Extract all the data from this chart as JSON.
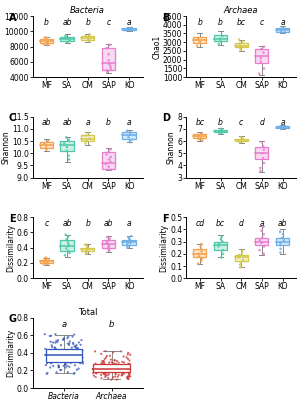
{
  "panels": {
    "A": {
      "title": "Bacteria",
      "ylabel": "Chao1",
      "categories": [
        "MF",
        "SA",
        "CM",
        "SAP",
        "KO"
      ],
      "colors": [
        "#F5A04A",
        "#4EC9A8",
        "#D4C84A",
        "#E87DD0",
        "#6BAEE8"
      ],
      "box_face_alpha": "55",
      "ylim": [
        4000,
        12000
      ],
      "yticks": [
        4000,
        6000,
        8000,
        10000,
        12000
      ],
      "medians": [
        8700,
        8950,
        9100,
        5800,
        10300
      ],
      "q1": [
        8450,
        8750,
        8800,
        5000,
        10150
      ],
      "q3": [
        9050,
        9250,
        9450,
        7800,
        10450
      ],
      "whislo": [
        8150,
        8500,
        8550,
        4600,
        10050
      ],
      "whishi": [
        9300,
        9600,
        9700,
        8400,
        10600
      ],
      "fliers": [
        [
          8200,
          8350,
          8500,
          8600,
          9100,
          9200
        ],
        [
          8600,
          8800,
          9050,
          9200,
          9400
        ],
        [
          8700,
          8950,
          9100,
          9350,
          9600
        ],
        [
          4700,
          4900,
          5100,
          5400,
          5700,
          6200,
          7000,
          7800,
          8200
        ],
        [
          10100,
          10200,
          10300,
          10350,
          10400
        ]
      ],
      "letters": [
        "b",
        "ab",
        "b",
        "c",
        "a"
      ]
    },
    "B": {
      "title": "Archaea",
      "ylabel": "Chao1",
      "categories": [
        "MF",
        "SA",
        "CM",
        "SAP",
        "KO"
      ],
      "colors": [
        "#F5A04A",
        "#4EC9A8",
        "#D4C84A",
        "#E87DD0",
        "#6BAEE8"
      ],
      "ylim": [
        1000,
        4500
      ],
      "yticks": [
        1000,
        1500,
        2000,
        2500,
        3000,
        3500,
        4000,
        4500
      ],
      "medians": [
        3100,
        3200,
        2800,
        2200,
        3700
      ],
      "q1": [
        2950,
        3050,
        2700,
        1800,
        3600
      ],
      "q3": [
        3300,
        3400,
        2950,
        2600,
        3800
      ],
      "whislo": [
        2750,
        2850,
        2500,
        1100,
        3500
      ],
      "whishi": [
        3550,
        3650,
        3150,
        2800,
        3950
      ],
      "fliers": [
        [
          2800,
          2950,
          3050,
          3150,
          3250
        ],
        [
          2900,
          3050,
          3200,
          3350
        ],
        [
          2550,
          2650,
          2800,
          2950,
          3050,
          3150
        ],
        [
          1200,
          1500,
          1900,
          2100,
          2400,
          2600,
          2750
        ],
        [
          3550,
          3650,
          3750,
          3850
        ]
      ],
      "letters": [
        "b",
        "b",
        "bc",
        "c",
        "a"
      ]
    },
    "C": {
      "title": "",
      "ylabel": "Shannon",
      "categories": [
        "MF",
        "SA",
        "CM",
        "SAP",
        "KO"
      ],
      "colors": [
        "#F5A04A",
        "#4EC9A8",
        "#D4C84A",
        "#E87DD0",
        "#6BAEE8"
      ],
      "ylim": [
        9.0,
        11.5
      ],
      "yticks": [
        9.0,
        9.5,
        10.0,
        10.5,
        11.0,
        11.5
      ],
      "medians": [
        10.35,
        10.35,
        10.6,
        9.6,
        10.75
      ],
      "q1": [
        10.22,
        10.1,
        10.5,
        9.35,
        10.6
      ],
      "q3": [
        10.48,
        10.5,
        10.75,
        10.05,
        10.85
      ],
      "whislo": [
        10.1,
        9.65,
        10.35,
        9.3,
        10.45
      ],
      "whishi": [
        10.58,
        10.68,
        10.88,
        10.2,
        10.95
      ],
      "fliers": [
        [
          10.15,
          10.22,
          10.32,
          10.42,
          10.5
        ],
        [
          9.75,
          9.9,
          10.1,
          10.25,
          10.4,
          10.55,
          10.65
        ],
        [
          10.4,
          10.5,
          10.6,
          10.72,
          10.82
        ],
        [
          9.32,
          9.45,
          9.55,
          9.65,
          9.75,
          9.85,
          9.95,
          10.05,
          10.15
        ],
        [
          10.45,
          10.55,
          10.65,
          10.75,
          10.85,
          10.92
        ]
      ],
      "letters": [
        "ab",
        "ab",
        "a",
        "b",
        "a"
      ]
    },
    "D": {
      "title": "",
      "ylabel": "Shannon",
      "categories": [
        "MF",
        "SA",
        "CM",
        "SAP",
        "KO"
      ],
      "colors": [
        "#F5A04A",
        "#4EC9A8",
        "#D4C84A",
        "#E87DD0",
        "#6BAEE8"
      ],
      "ylim": [
        3,
        8
      ],
      "yticks": [
        3,
        4,
        5,
        6,
        7,
        8
      ],
      "medians": [
        6.4,
        6.8,
        6.1,
        5.0,
        7.1
      ],
      "q1": [
        6.25,
        6.7,
        6.0,
        4.5,
        7.05
      ],
      "q3": [
        6.6,
        6.9,
        6.2,
        5.5,
        7.2
      ],
      "whislo": [
        6.0,
        6.55,
        5.85,
        3.5,
        7.0
      ],
      "whishi": [
        6.75,
        7.05,
        6.38,
        6.0,
        7.28
      ],
      "fliers": [
        [
          6.05,
          6.15,
          6.25,
          6.35,
          6.5,
          6.6
        ],
        [
          6.6,
          6.7,
          6.8,
          6.9,
          7.0
        ],
        [
          5.9,
          6.0,
          6.1,
          6.2,
          6.3
        ],
        [
          3.55,
          3.8,
          4.2,
          4.6,
          5.0,
          5.3,
          5.6,
          5.9
        ],
        [
          7.02,
          7.08,
          7.15,
          7.2,
          7.26
        ]
      ],
      "letters": [
        "bc",
        "b",
        "c",
        "d",
        "a"
      ]
    },
    "E": {
      "title": "",
      "ylabel": "Dissimilarity",
      "categories": [
        "MF",
        "SA",
        "CM",
        "SAP",
        "KO"
      ],
      "colors": [
        "#F5A04A",
        "#4EC9A8",
        "#D4C84A",
        "#E87DD0",
        "#6BAEE8"
      ],
      "ylim": [
        0.0,
        0.8
      ],
      "yticks": [
        0.0,
        0.2,
        0.4,
        0.6,
        0.8
      ],
      "medians": [
        0.22,
        0.42,
        0.38,
        0.45,
        0.47
      ],
      "q1": [
        0.2,
        0.36,
        0.36,
        0.4,
        0.44
      ],
      "q3": [
        0.24,
        0.5,
        0.4,
        0.5,
        0.5
      ],
      "whislo": [
        0.18,
        0.28,
        0.32,
        0.35,
        0.4
      ],
      "whishi": [
        0.27,
        0.57,
        0.45,
        0.55,
        0.55
      ],
      "fliers": [
        [
          0.18,
          0.19,
          0.2,
          0.21,
          0.22,
          0.23,
          0.24,
          0.25,
          0.26,
          0.27
        ],
        [
          0.3,
          0.33,
          0.36,
          0.39,
          0.42,
          0.45,
          0.48,
          0.51,
          0.54,
          0.57
        ],
        [
          0.32,
          0.34,
          0.36,
          0.38,
          0.39,
          0.4,
          0.42,
          0.44
        ],
        [
          0.36,
          0.38,
          0.4,
          0.42,
          0.44,
          0.46,
          0.48,
          0.5,
          0.52,
          0.54
        ],
        [
          0.4,
          0.42,
          0.44,
          0.46,
          0.47,
          0.49,
          0.51,
          0.53,
          0.55
        ]
      ],
      "letters": [
        "c",
        "ab",
        "b",
        "ab",
        "a"
      ]
    },
    "F": {
      "title": "",
      "ylabel": "Dissimilarity",
      "categories": [
        "MF",
        "SA",
        "CM",
        "SAP",
        "KO"
      ],
      "colors": [
        "#F5A04A",
        "#4EC9A8",
        "#D4C84A",
        "#E87DD0",
        "#6BAEE8"
      ],
      "ylim": [
        0.0,
        0.5
      ],
      "yticks": [
        0.0,
        0.1,
        0.2,
        0.3,
        0.4,
        0.5
      ],
      "medians": [
        0.2,
        0.27,
        0.17,
        0.3,
        0.3
      ],
      "q1": [
        0.17,
        0.23,
        0.14,
        0.27,
        0.27
      ],
      "q3": [
        0.24,
        0.3,
        0.19,
        0.33,
        0.33
      ],
      "whislo": [
        0.12,
        0.17,
        0.09,
        0.19,
        0.2
      ],
      "whishi": [
        0.28,
        0.35,
        0.24,
        0.43,
        0.4
      ],
      "fliers": [
        [
          0.12,
          0.14,
          0.16,
          0.18,
          0.2,
          0.22,
          0.24,
          0.26,
          0.28
        ],
        [
          0.17,
          0.2,
          0.23,
          0.26,
          0.28,
          0.3,
          0.32,
          0.34
        ],
        [
          0.09,
          0.11,
          0.13,
          0.15,
          0.17,
          0.19,
          0.21,
          0.23
        ],
        [
          0.2,
          0.23,
          0.26,
          0.29,
          0.31,
          0.33,
          0.36,
          0.39,
          0.42
        ],
        [
          0.21,
          0.24,
          0.27,
          0.29,
          0.31,
          0.33,
          0.36,
          0.38
        ]
      ],
      "letters": [
        "cd",
        "bc",
        "d",
        "a",
        "ab"
      ]
    },
    "G": {
      "title": "Total",
      "ylabel": "Dissimilarity",
      "categories": [
        "Bacteria",
        "Archaea"
      ],
      "colors": [
        "#3355BB",
        "#CC3333"
      ],
      "ylim": [
        0.0,
        0.8
      ],
      "yticks": [
        0.0,
        0.2,
        0.4,
        0.6,
        0.8
      ],
      "medians": [
        0.37,
        0.22
      ],
      "q1": [
        0.29,
        0.18
      ],
      "q3": [
        0.44,
        0.27
      ],
      "whislo": [
        0.17,
        0.1
      ],
      "whishi": [
        0.6,
        0.42
      ],
      "n_points": [
        90,
        90
      ],
      "letters": [
        "a",
        "b"
      ]
    }
  }
}
